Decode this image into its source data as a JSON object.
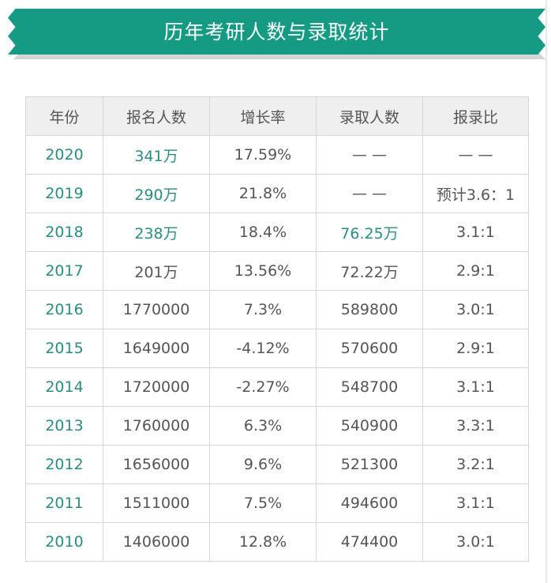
{
  "title": "历年考研人数与录取统计",
  "colors": {
    "banner": "#159a84",
    "accent_text": "#2a8d82",
    "body_text": "#555555",
    "header_bg": "#efefef",
    "border": "#d6d6d6"
  },
  "table": {
    "headers": [
      "年份",
      "报名人数",
      "增长率",
      "录取人数",
      "报录比"
    ],
    "rows": [
      {
        "year": "2020",
        "applicants": "341万",
        "growth": "17.59%",
        "admitted": "— —",
        "ratio": "— —"
      },
      {
        "year": "2019",
        "applicants": "290万",
        "growth": "21.8%",
        "admitted": "— —",
        "ratio": "预计3.6：1"
      },
      {
        "year": "2018",
        "applicants": "238万",
        "growth": "18.4%",
        "admitted": "76.25万",
        "ratio": "3.1:1"
      },
      {
        "year": "2017",
        "applicants": "201万",
        "growth": "13.56%",
        "admitted": "72.22万",
        "ratio": "2.9:1"
      },
      {
        "year": "2016",
        "applicants": "1770000",
        "growth": "7.3%",
        "admitted": "589800",
        "ratio": "3.0:1"
      },
      {
        "year": "2015",
        "applicants": "1649000",
        "growth": "-4.12%",
        "admitted": "570600",
        "ratio": "2.9:1"
      },
      {
        "year": "2014",
        "applicants": "1720000",
        "growth": "-2.27%",
        "admitted": "548700",
        "ratio": "3.1:1"
      },
      {
        "year": "2013",
        "applicants": "1760000",
        "growth": "6.3%",
        "admitted": "540900",
        "ratio": "3.3:1"
      },
      {
        "year": "2012",
        "applicants": "1656000",
        "growth": "9.6%",
        "admitted": "521300",
        "ratio": "3.2:1"
      },
      {
        "year": "2011",
        "applicants": "1511000",
        "growth": "7.5%",
        "admitted": "494600",
        "ratio": "3.1:1"
      },
      {
        "year": "2010",
        "applicants": "1406000",
        "growth": "12.8%",
        "admitted": "474400",
        "ratio": "3.0:1"
      }
    ]
  }
}
